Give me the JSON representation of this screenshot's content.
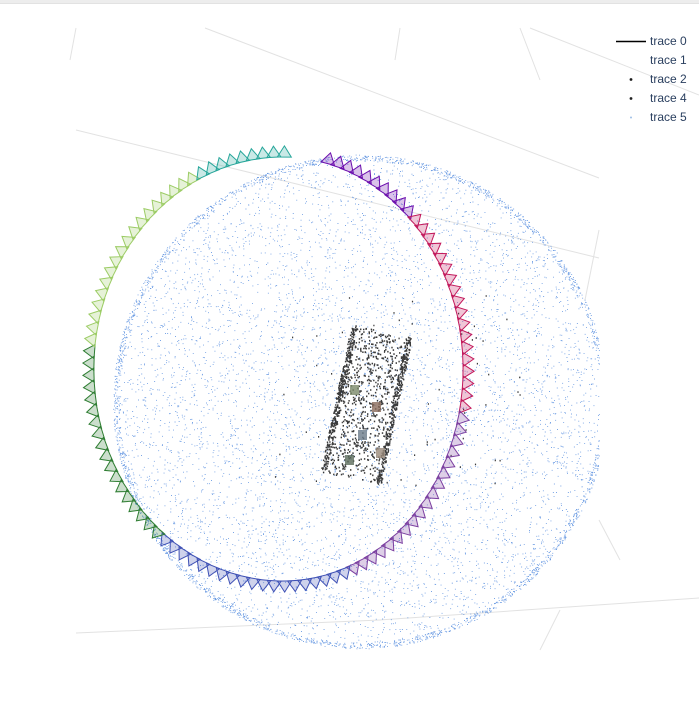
{
  "chart_data": {
    "type": "scatter",
    "title": "",
    "dimensions": "3d",
    "grid": true,
    "legend_position": "top-right",
    "series": [
      {
        "name": "trace 0",
        "mode": "lines",
        "color": "#000000"
      },
      {
        "name": "trace 1",
        "mode": "lines",
        "color": "#ffffff"
      },
      {
        "name": "trace 2",
        "mode": "markers",
        "color": "#1a1a1a",
        "marker_size": 2
      },
      {
        "name": "trace 4",
        "mode": "markers",
        "color": "#1f1f1f",
        "marker_size": 2
      },
      {
        "name": "trace 5",
        "mode": "markers",
        "color": "#9fbfe6",
        "marker_size": 1
      }
    ],
    "colors": {
      "sphere_points": "#3b7bd9",
      "camera_frustums_gradient": [
        "#6a0dad",
        "#c2185b",
        "#7b3fa0",
        "#3f51b5",
        "#2e7d32",
        "#9ccc65",
        "#26a69a"
      ],
      "scene_points": "#1a1a1a",
      "grid": "#e2e2e2"
    }
  }
}
